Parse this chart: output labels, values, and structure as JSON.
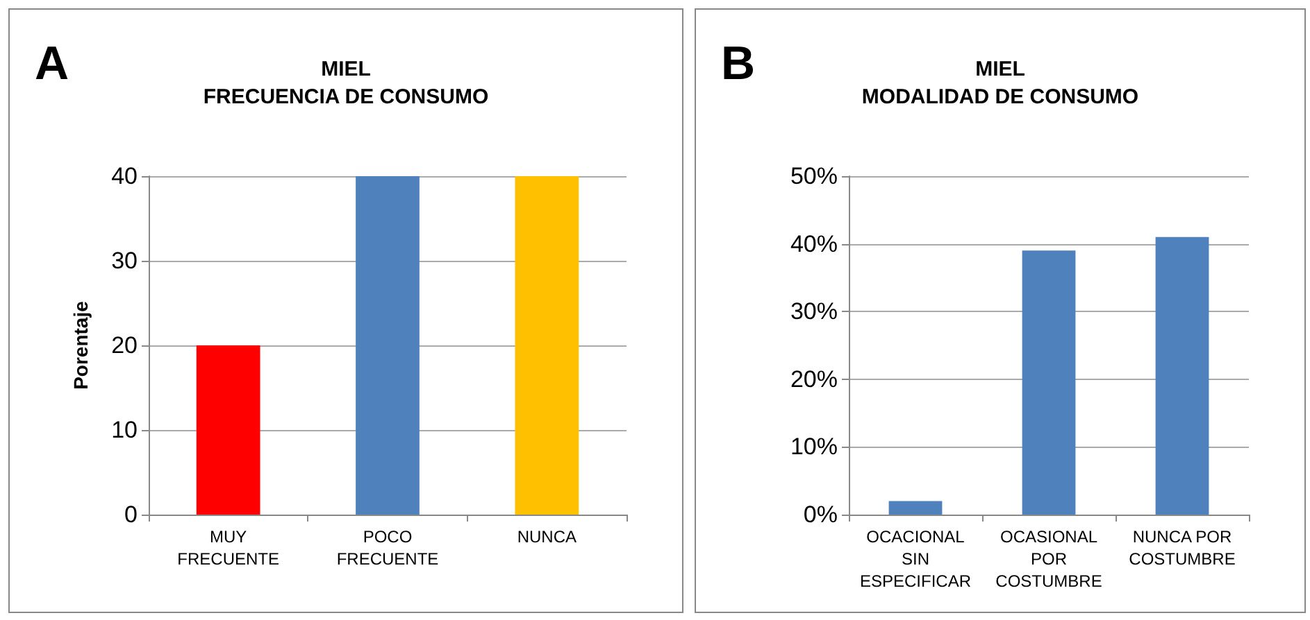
{
  "chart_data": [
    {
      "type": "bar",
      "title": "MIEL\nFRECUENCIA DE CONSUMO",
      "ylabel": "Porentaje",
      "annotations": [
        "A"
      ],
      "categories": [
        "MUY\nFRECUENTE",
        "POCO\nFRECUENTE",
        "NUNCA"
      ],
      "values": [
        20,
        40,
        40
      ],
      "colors": [
        "#ff0000",
        "#4f81bd",
        "#ffc000"
      ],
      "ylim": [
        0,
        40
      ],
      "yticks": [
        0,
        10,
        20,
        30,
        40
      ],
      "grid": "y"
    },
    {
      "type": "bar",
      "title": "MIEL\nMODALIDAD DE CONSUMO",
      "annotations": [
        "B"
      ],
      "categories": [
        "OCACIONAL\nSIN\nESPECIFICAR",
        "OCASIONAL\nPOR\nCOSTUMBRE",
        "NUNCA POR\nCOSTUMBRE"
      ],
      "values": [
        2,
        39,
        41
      ],
      "color": "#4f81bd",
      "ylim": [
        0,
        50
      ],
      "yticks": [
        {
          "value": 0,
          "label": "0%"
        },
        {
          "value": 10,
          "label": "10%"
        },
        {
          "value": 20,
          "label": "20%"
        },
        {
          "value": 30,
          "label": "30%"
        },
        {
          "value": 40,
          "label": "40%"
        },
        {
          "value": 50,
          "label": "50%"
        }
      ],
      "grid": "y"
    }
  ]
}
